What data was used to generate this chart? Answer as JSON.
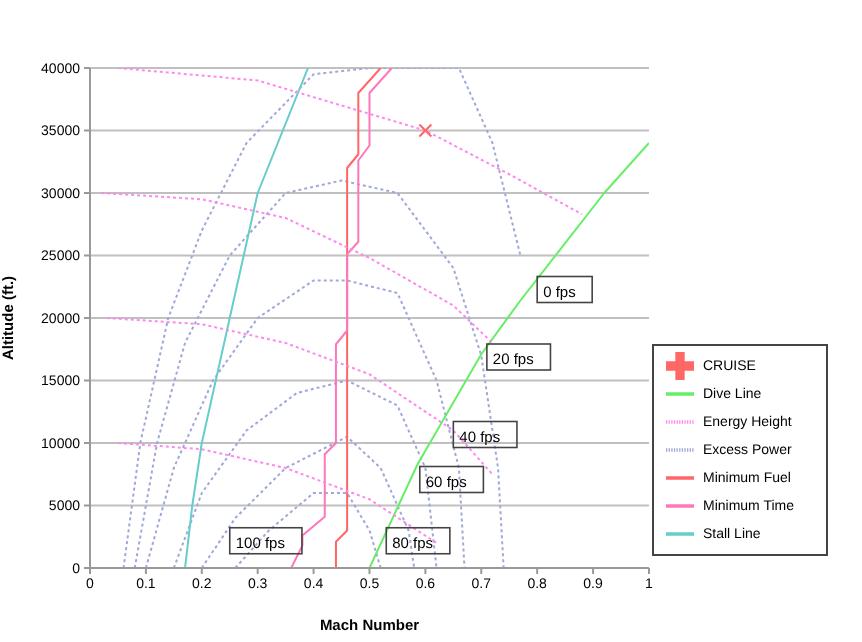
{
  "chart_data": {
    "type": "line",
    "xlabel": "Mach Number",
    "ylabel": "Altitude (ft.)",
    "xlim": [
      0,
      1
    ],
    "xticks": [
      0,
      0.1,
      0.2,
      0.3,
      0.4,
      0.5,
      0.6,
      0.7,
      0.8,
      0.9,
      1
    ],
    "ylim": [
      0,
      40000
    ],
    "yticks": [
      0,
      5000,
      10000,
      15000,
      20000,
      25000,
      30000,
      35000,
      40000
    ],
    "grid": "y",
    "legend": "bottom right",
    "marker": "none",
    "series": [
      {
        "name": "Excess Power",
        "color": "#9fa8d8",
        "line_style": "dotted",
        "x": [
          0.06,
          0.09,
          0.14,
          0.2,
          0.28,
          0.4,
          0.5,
          0.58,
          0.66,
          0.72,
          0.77,
          null,
          0.08,
          0.12,
          0.17,
          0.25,
          0.35,
          0.45,
          0.55,
          0.65,
          0.7,
          0.73,
          0.74,
          null,
          0.1,
          0.15,
          0.22,
          0.3,
          0.4,
          0.46,
          0.55,
          0.62,
          0.66,
          0.67,
          null,
          0.15,
          0.2,
          0.28,
          0.37,
          0.46,
          0.55,
          0.6,
          0.62,
          null,
          0.2,
          0.26,
          0.35,
          0.46,
          0.52,
          0.57,
          0.58,
          null,
          0.26,
          0.32,
          0.4,
          0.46,
          0.5,
          0.52
        ],
        "values": [
          0,
          10000,
          20000,
          27000,
          34000,
          39500,
          40000,
          40000,
          40000,
          34000,
          25000,
          null,
          0,
          10000,
          18000,
          25000,
          30000,
          31000,
          30000,
          24000,
          17000,
          8000,
          0,
          null,
          0,
          8000,
          15000,
          20000,
          23000,
          23000,
          22000,
          15000,
          8000,
          0,
          null,
          0,
          6000,
          11000,
          14000,
          15000,
          13000,
          8000,
          0,
          null,
          0,
          4000,
          8000,
          10500,
          8000,
          3000,
          0,
          null,
          0,
          3000,
          6000,
          6000,
          3000,
          0
        ]
      },
      {
        "name": "Minimum Fuel",
        "color": "#ff6666",
        "line_style": "solid",
        "x": [
          0.44,
          0.44,
          0.46,
          0.46,
          0.48,
          0.48,
          0.52
        ],
        "values": [
          0,
          2100,
          3000,
          32000,
          33100,
          38000,
          40000
        ]
      },
      {
        "name": "Minimum Time",
        "color": "#ff77bb",
        "line_style": "solid",
        "x": [
          0.36,
          0.38,
          0.38,
          0.42,
          0.42,
          0.44,
          0.44,
          0.46,
          0.46,
          0.48,
          0.48,
          0.5,
          0.5,
          0.54
        ],
        "values": [
          0,
          1800,
          2600,
          4100,
          9100,
          10000,
          17900,
          19000,
          25100,
          26100,
          32600,
          33800,
          38000,
          40000
        ]
      },
      {
        "name": "Stall Line",
        "color": "#66cccc",
        "line_style": "solid",
        "x": [
          0.17,
          0.183,
          0.2,
          0.25,
          0.3,
          0.39
        ],
        "values": [
          0,
          5000,
          10000,
          20000,
          30000,
          40000
        ]
      },
      {
        "name": "Dive Line",
        "color": "#66ee66",
        "line_style": "solid",
        "x": [
          0.5,
          0.586,
          0.7,
          0.77,
          0.92,
          1
        ],
        "values": [
          0,
          8300,
          17100,
          21400,
          30000,
          34000
        ]
      },
      {
        "name": "Energy Height",
        "color": "#ff88ee",
        "line_style": "dotted",
        "x": [
          0.05,
          0.3,
          0.45,
          0.6,
          0.75,
          0.88,
          null,
          0.02,
          0.2,
          0.35,
          0.5,
          0.65,
          0.72,
          null,
          0.03,
          0.2,
          0.35,
          0.5,
          0.65,
          0.72,
          null,
          0.05,
          0.2,
          0.35,
          0.5,
          0.62
        ],
        "values": [
          40000,
          39000,
          37000,
          35000,
          31500,
          28300,
          null,
          30000,
          29500,
          28000,
          24800,
          21000,
          18000,
          null,
          20000,
          19500,
          18000,
          15500,
          11000,
          7500,
          null,
          10000,
          9500,
          8000,
          5500,
          2000
        ]
      },
      {
        "name": "CRUISE",
        "type": "scatter",
        "marker": "cross",
        "color": "#ff6666",
        "x": [
          0.6
        ],
        "values": [
          35000
        ]
      }
    ],
    "annotations": [
      {
        "text": "0 fps",
        "x": 0.8,
        "y": 22200
      },
      {
        "text": "20 fps",
        "x": 0.71,
        "y": 16800
      },
      {
        "text": "40 fps",
        "x": 0.65,
        "y": 10600
      },
      {
        "text": "60 fps",
        "x": 0.59,
        "y": 7000
      },
      {
        "text": "80 fps",
        "x": 0.53,
        "y": 2100
      },
      {
        "text": "100 fps",
        "x": 0.25,
        "y": 2100
      }
    ]
  }
}
